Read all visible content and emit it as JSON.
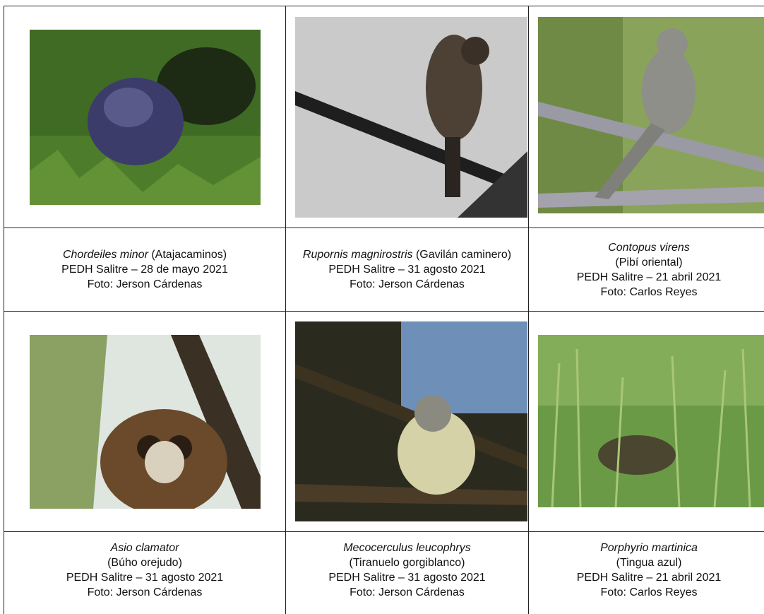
{
  "cells": [
    {
      "species": "Chordeiles minor",
      "common": "(Atajacaminos)",
      "place_date": "PEDH Salitre – 28 de mayo 2021",
      "credit": "Foto: Jerson Cárdenas"
    },
    {
      "species": "Rupornis magnirostris",
      "common": "(Gavilán caminero)",
      "place_date": "PEDH Salitre – 31 agosto 2021",
      "credit": "Foto: Jerson Cárdenas"
    },
    {
      "species": "Contopus virens",
      "common": "(Pibí oriental)",
      "place_date": "PEDH Salitre – 21 abril 2021",
      "credit": "Foto: Carlos Reyes"
    },
    {
      "species": "Asio clamator",
      "common": "(Búho orejudo)",
      "place_date": "PEDH Salitre – 31 agosto 2021",
      "credit": "Foto: Jerson Cárdenas"
    },
    {
      "species": "Mecocerculus leucophrys",
      "common": "(Tiranuelo gorgiblanco)",
      "place_date": "PEDH Salitre – 31 agosto 2021",
      "credit": "Foto: Jerson Cárdenas"
    },
    {
      "species": "Porphyrio martinica",
      "common": "(Tingua azul)",
      "place_date": "PEDH Salitre – 21 abril 2021",
      "credit": "Foto: Carlos Reyes"
    }
  ]
}
